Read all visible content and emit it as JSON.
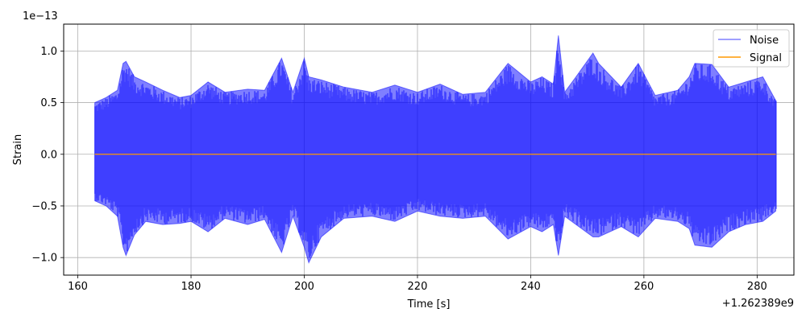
{
  "chart_data": {
    "type": "line",
    "title": "",
    "xlabel": "Time [s]",
    "ylabel": "Strain",
    "x_offset_label": "+1.262389e9",
    "y_scale_label": "1e−13",
    "xlim": [
      157.5,
      286.5
    ],
    "ylim": [
      -1.17,
      1.26
    ],
    "xticks": [
      160,
      180,
      200,
      220,
      240,
      260,
      280
    ],
    "xtick_labels": [
      "160",
      "180",
      "200",
      "220",
      "240",
      "260",
      "280"
    ],
    "yticks": [
      -1.0,
      -0.5,
      0.0,
      0.5,
      1.0
    ],
    "ytick_labels": [
      "−1.0",
      "−0.5",
      "0.0",
      "0.5",
      "1.0"
    ],
    "grid": true,
    "legend_position": "top-right",
    "series": [
      {
        "name": "Noise",
        "color": "#0000ff",
        "opacity": 0.5,
        "t_start": 163.0,
        "t_end": 283.3,
        "envelope_x": [
          163.0,
          165.0,
          167.0,
          168.0,
          168.5,
          170.0,
          172.0,
          175.0,
          178.0,
          180.0,
          183.0,
          186.0,
          190.0,
          193.0,
          196.0,
          198.0,
          200.0,
          200.8,
          203.0,
          207.0,
          212.0,
          216.0,
          220.0,
          224.0,
          228.0,
          232.0,
          236.0,
          240.0,
          242.0,
          244.0,
          244.9,
          246.0,
          248.0,
          251.0,
          252.0,
          256.0,
          259.0,
          262.0,
          266.0,
          268.0,
          269.0,
          272.0,
          275.0,
          278.0,
          281.0,
          283.3
        ],
        "upper": [
          0.5,
          0.55,
          0.62,
          0.88,
          0.9,
          0.75,
          0.7,
          0.62,
          0.55,
          0.57,
          0.7,
          0.6,
          0.63,
          0.62,
          0.93,
          0.6,
          0.93,
          0.75,
          0.72,
          0.65,
          0.6,
          0.67,
          0.6,
          0.68,
          0.58,
          0.6,
          0.88,
          0.7,
          0.75,
          0.68,
          1.15,
          0.6,
          0.75,
          0.98,
          0.88,
          0.65,
          0.88,
          0.57,
          0.62,
          0.75,
          0.88,
          0.87,
          0.65,
          0.7,
          0.75,
          0.52
        ],
        "lower": [
          -0.45,
          -0.5,
          -0.6,
          -0.9,
          -0.98,
          -0.78,
          -0.65,
          -0.68,
          -0.67,
          -0.65,
          -0.75,
          -0.62,
          -0.68,
          -0.63,
          -0.95,
          -0.6,
          -0.9,
          -1.05,
          -0.8,
          -0.62,
          -0.6,
          -0.65,
          -0.55,
          -0.6,
          -0.62,
          -0.6,
          -0.82,
          -0.7,
          -0.75,
          -0.68,
          -0.98,
          -0.6,
          -0.68,
          -0.8,
          -0.8,
          -0.7,
          -0.8,
          -0.62,
          -0.65,
          -0.72,
          -0.88,
          -0.9,
          -0.75,
          -0.68,
          -0.65,
          -0.55
        ]
      },
      {
        "name": "Signal",
        "color": "#ff9900",
        "x": [
          163.0,
          283.3
        ],
        "y": [
          0.0,
          0.0
        ]
      }
    ]
  }
}
